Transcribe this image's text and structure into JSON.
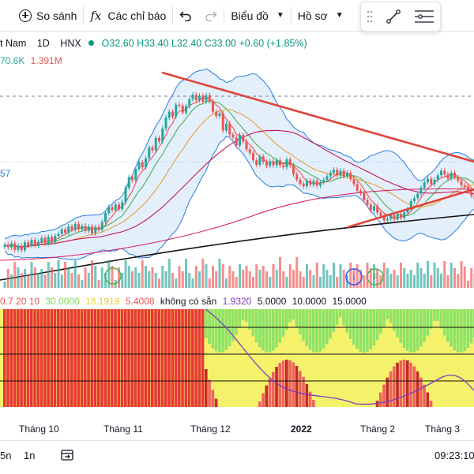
{
  "toolbar": {
    "compare_label": "So sánh",
    "indicators_label": "Các chỉ báo",
    "chart_type_label": "Biểu đồ",
    "profile_label": "Hồ sơ",
    "fx_glyph": "fx"
  },
  "legend": {
    "symbol": "t Nam",
    "interval": "1D",
    "exchange": "HNX",
    "open": "O32.60",
    "high": "H33.40",
    "low": "L32.40",
    "close": "C33.00",
    "change": "+0.60 (+1.85%)",
    "vol_a": "70.6K",
    "vol_b": "1.391M"
  },
  "price_axis_fragment": "57",
  "markers": {
    "i": "i",
    "f": "F"
  },
  "indicator_legend": {
    "params": "0.7 20 10",
    "v1": "30.0000",
    "v2": "18.1919",
    "v3": "5.4008",
    "na": "không có sẵn",
    "v4": "1.9320",
    "v5": "5.0000",
    "v6": "10.0000",
    "v7": "15.0000"
  },
  "time_axis": [
    "Tháng 10",
    "Tháng 11",
    "Tháng 12",
    "2022",
    "Tháng 2",
    "Tháng 3"
  ],
  "bottom": {
    "r1": "5n",
    "r2": "1n",
    "time": "09:23:10"
  },
  "colors": {
    "up": "#26a69a",
    "down": "#ef5350",
    "trend": "#e0453a",
    "band_fill": "#dbe9fb",
    "band_line": "#2a7de1"
  },
  "icons": [
    "circle-plus-icon",
    "fx-icon",
    "undo-icon",
    "redo-icon",
    "drag-handle-icon",
    "line-tool-icon",
    "settings-lines-icon",
    "date-range-icon"
  ],
  "chart_data": {
    "type": "candlestick",
    "series": [
      {
        "name": "price",
        "values": [
          32.0,
          31.5,
          32.3,
          31.0,
          31.8,
          30.9,
          32.5,
          31.8,
          33.0,
          31.8,
          32.6,
          33.4,
          32.3,
          33.6,
          32.5,
          33.8,
          34.2,
          35.1,
          34.4,
          35.7,
          35.0,
          36.2,
          35.1,
          35.8,
          34.8,
          35.7,
          34.3,
          35.6,
          35.0,
          36.6,
          38.4,
          39.6,
          39.0,
          40.1,
          39.2,
          40.6,
          43.5,
          45.6,
          45.0,
          47.3,
          48.6,
          47.6,
          49.4,
          51.6,
          51.0,
          53.5,
          52.8,
          55.4,
          57.6,
          58.8,
          57.8,
          60.2,
          60.0,
          58.6,
          59.9,
          61.3,
          62.2,
          61.1,
          62.0,
          60.8,
          62.1,
          60.9,
          58.8,
          57.9,
          58.5,
          55.0,
          56.4,
          54.2,
          53.6,
          52.0,
          54.1,
          52.8,
          51.2,
          50.5,
          49.0,
          48.1,
          49.8,
          48.7,
          47.9,
          48.8,
          48.0,
          49.0,
          48.0,
          47.6,
          49.2,
          48.0,
          46.2,
          45.1,
          44.3,
          43.8,
          44.9,
          44.1,
          44.9,
          43.9,
          44.6,
          45.1,
          45.8,
          46.5,
          47.1,
          46.0,
          46.9,
          45.8,
          46.5,
          45.2,
          44.2,
          42.9,
          42.4,
          41.0,
          40.1,
          38.9,
          39.8,
          38.5,
          37.8,
          36.9,
          37.2,
          38.0,
          37.1,
          38.2,
          37.4,
          38.5,
          39.2,
          40.8,
          41.4,
          42.3,
          43.5,
          44.6,
          45.3,
          44.2,
          45.1,
          46.0,
          46.9,
          46.2,
          45.3,
          46.5,
          45.6,
          44.9,
          44.0,
          43.7,
          42.8,
          41.9,
          41.2
        ]
      }
    ],
    "xlabel": "",
    "ylabel": ""
  }
}
